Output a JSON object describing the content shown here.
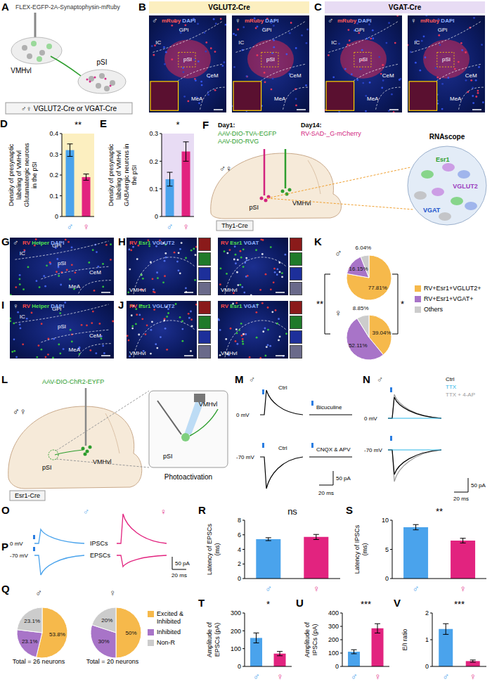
{
  "figure": {
    "A": {
      "letter": "A",
      "virus": "FLEX-EGFP-2A-Synaptophysin-mRuby",
      "source": "VMHvl",
      "target": "pSI",
      "sexes": [
        "♂",
        "♀"
      ],
      "mice": "VGLUT2-Cre or VGAT-Cre"
    },
    "B": {
      "letter": "B",
      "header": "VGLUT2-Cre",
      "color": "#fcefc0",
      "sexes": [
        "♂",
        "♀"
      ],
      "stain": [
        {
          "text": "mRuby",
          "color": "#ff5a5a"
        },
        {
          "text": "DAPI",
          "color": "#8fb0ff"
        }
      ],
      "regions": [
        "GPi",
        "IC",
        "pSI",
        "CeM",
        "MeA"
      ]
    },
    "C": {
      "letter": "C",
      "header": "VGAT-Cre",
      "color": "#e8dcf4",
      "sexes": [
        "♂",
        "♀"
      ],
      "stain": [
        {
          "text": "mRuby",
          "color": "#ff5a5a"
        },
        {
          "text": "DAPI",
          "color": "#8fb0ff"
        }
      ],
      "regions": [
        "GPi",
        "IC",
        "pSI",
        "CeM",
        "MeA"
      ]
    },
    "F": {
      "letter": "F",
      "steps": [
        {
          "day": "Day1:",
          "viruses": [
            "AAV-DIO-TVA-EGFP",
            "AAV-DIO-RVG"
          ]
        },
        {
          "day": "Day14:",
          "viruses": [
            "RV-SAD-_G-mCherry"
          ]
        }
      ],
      "regions": [
        "pSI",
        "VMHvl"
      ],
      "sexes": [
        "♂",
        "♀"
      ],
      "mouse": "Thy1-Cre",
      "method": "RNAscope",
      "markers": [
        {
          "text": "Esr1",
          "color": "#2e9e2e"
        },
        {
          "text": "VGLUT2",
          "color": "#9b3fbf"
        },
        {
          "text": "VGAT",
          "color": "#2255cc"
        }
      ]
    },
    "G": {
      "letter": "G",
      "sex": "♂",
      "stain": [
        {
          "text": "RV",
          "color": "#ff4a4a"
        },
        {
          "text": "Helper",
          "color": "#4fe04f"
        },
        {
          "text": "DAPI",
          "color": "#8fb0ff"
        }
      ],
      "regions": [
        "GPi",
        "IC",
        "pSI",
        "CeM",
        "MeA"
      ]
    },
    "H": {
      "letter": "H",
      "images": [
        {
          "stain": [
            {
              "text": "RV",
              "color": "#ff4a4a"
            },
            {
              "text": "Esr1",
              "color": "#4fe04f"
            },
            {
              "text": "VGLUT2",
              "color": "#8fb0ff"
            }
          ]
        },
        {
          "stain": [
            {
              "text": "RV",
              "color": "#ff4a4a"
            },
            {
              "text": "Esr1",
              "color": "#4fe04f"
            },
            {
              "text": "VGAT",
              "color": "#8fb0ff"
            }
          ]
        }
      ],
      "region": "VMHvl"
    },
    "I": {
      "letter": "I",
      "sex": "♀",
      "stain": [
        {
          "text": "RV",
          "color": "#ff4a4a"
        },
        {
          "text": "Helper",
          "color": "#4fe04f"
        },
        {
          "text": "DAPI",
          "color": "#8fb0ff"
        }
      ],
      "regions": [
        "GPi",
        "IC",
        "pSI",
        "CeM",
        "MeA"
      ]
    },
    "J": {
      "letter": "J",
      "images": [
        {
          "stain": [
            {
              "text": "RV",
              "color": "#ff4a4a"
            },
            {
              "text": "Esr1",
              "color": "#4fe04f"
            },
            {
              "text": "VGLUT2",
              "color": "#8fb0ff"
            }
          ]
        },
        {
          "stain": [
            {
              "text": "RV",
              "color": "#ff4a4a"
            },
            {
              "text": "Esr1",
              "color": "#4fe04f"
            },
            {
              "text": "VGAT",
              "color": "#8fb0ff"
            }
          ]
        }
      ],
      "region": "VMHvl"
    },
    "L": {
      "letter": "L",
      "virus": "AAV-DIO-ChR2-EYFP",
      "regions": [
        "pSI",
        "VMHvl"
      ],
      "sexes": [
        "♂",
        "♀"
      ],
      "mouse": "Esr1-Cre",
      "method": "Photoactivation"
    },
    "M": {
      "letter": "M",
      "sex": "♂",
      "rows": [
        {
          "holding": "0 mV",
          "conditions": [
            "Ctrl",
            "Bicuculine"
          ]
        },
        {
          "holding": "-70 mV",
          "conditions": [
            "Ctrl",
            "CNQX & APV"
          ]
        }
      ],
      "scale": {
        "current": "50 pA",
        "time": "20 ms"
      }
    },
    "N": {
      "letter": "N",
      "sex": "♂",
      "conditions": [
        {
          "text": "Ctrl",
          "color": "#000000"
        },
        {
          "text": "TTX",
          "color": "#29b6e8"
        },
        {
          "text": "TTX + 4-AP",
          "color": "#9a9a9a"
        }
      ],
      "holdings": [
        "0 mV",
        "-70 mV"
      ],
      "scale": {
        "current": "50 pA",
        "time": "20 ms"
      }
    },
    "O_P": {
      "rows": [
        {
          "letter": "O",
          "holding": "0 mV",
          "label": "IPSCs"
        },
        {
          "letter": "P",
          "holding": "-70 mV",
          "label": "EPSCs"
        }
      ],
      "sexes": [
        "♂",
        "♀"
      ],
      "colors": [
        "#4aa3ec",
        "#e2237f"
      ],
      "scale": {
        "current": "50 pA",
        "time": "20 ms"
      }
    }
  },
  "chart_data": [
    {
      "panel": "D",
      "type": "bar",
      "y_label": "Density of presynaptic labeling of VMHvl Glutamatergic neurons in the pSI",
      "categories": [
        "♂",
        "♀"
      ],
      "values": [
        0.32,
        0.19
      ],
      "errors": [
        0.03,
        0.015
      ],
      "colors": [
        "#4aa3ec",
        "#e2237f"
      ],
      "ylim": [
        0,
        0.4
      ],
      "yticks": [
        0,
        0.1,
        0.2,
        0.3,
        0.4
      ],
      "significance": "**"
    },
    {
      "panel": "E",
      "type": "bar",
      "y_label": "Density of presynaptic labeling of VMHvl GABAergic neurons in the pSI",
      "categories": [
        "♂",
        "♀"
      ],
      "values": [
        0.135,
        0.235
      ],
      "errors": [
        0.025,
        0.035
      ],
      "colors": [
        "#4aa3ec",
        "#e2237f"
      ],
      "ylim": [
        0,
        0.3
      ],
      "yticks": [
        0,
        0.1,
        0.2,
        0.3
      ],
      "significance": "*"
    },
    {
      "panel": "K",
      "type": "pie",
      "categories": [
        "RV+Esr1+VGLUT2+",
        "RV+Esr1+VGAT+",
        "Others"
      ],
      "colors": [
        "#f6b94b",
        "#a874c8",
        "#cccccc"
      ],
      "series": [
        {
          "name": "♂",
          "values": [
            77.81,
            16.15,
            6.04
          ],
          "value_labels": [
            "77.81%",
            "16.15%",
            "6.04%"
          ]
        },
        {
          "name": "♀",
          "values": [
            39.04,
            52.11,
            8.85
          ],
          "value_labels": [
            "39.04%",
            "52.11%",
            "8.85%"
          ]
        }
      ],
      "significance": [
        "**",
        "*"
      ],
      "legend": "right"
    },
    {
      "panel": "Q",
      "type": "pie",
      "categories": [
        "Excited & Inhibited",
        "Inhibited",
        "Non-R"
      ],
      "colors": [
        "#f6b94b",
        "#a874c8",
        "#cccccc"
      ],
      "series": [
        {
          "name": "♂",
          "values": [
            53.8,
            23.1,
            23.1
          ],
          "value_labels": [
            "53.8%",
            "23.1%",
            "23.1%"
          ],
          "caption": "Total = 26 neurons"
        },
        {
          "name": "♀",
          "values": [
            50,
            30,
            20
          ],
          "value_labels": [
            "50%",
            "30%",
            "20%"
          ],
          "caption": "Total = 20 neurons"
        }
      ],
      "legend": "right"
    },
    {
      "panel": "R",
      "type": "bar",
      "y_label": "Latency of EPSCs (ms)",
      "categories": [
        "♂",
        "♀"
      ],
      "values": [
        5.4,
        5.7
      ],
      "errors": [
        0.2,
        0.35
      ],
      "colors": [
        "#4aa3ec",
        "#e2237f"
      ],
      "ylim": [
        0,
        8
      ],
      "yticks": [
        0,
        2,
        4,
        6,
        8
      ],
      "significance": "ns"
    },
    {
      "panel": "S",
      "type": "bar",
      "y_label": "Latency of IPSCs (ms)",
      "categories": [
        "♂",
        "♀"
      ],
      "values": [
        8.8,
        6.5
      ],
      "errors": [
        0.45,
        0.4
      ],
      "colors": [
        "#4aa3ec",
        "#e2237f"
      ],
      "ylim": [
        0,
        10
      ],
      "yticks": [
        0,
        5,
        10
      ],
      "significance": "**"
    },
    {
      "panel": "T",
      "type": "bar",
      "y_label": "Amplitude of EPSCs (pA)",
      "categories": [
        "♂",
        "♀"
      ],
      "values": [
        160,
        72
      ],
      "errors": [
        28,
        12
      ],
      "colors": [
        "#4aa3ec",
        "#e2237f"
      ],
      "ylim": [
        0,
        300
      ],
      "yticks": [
        0,
        100,
        200,
        300
      ],
      "significance": "*"
    },
    {
      "panel": "U",
      "type": "bar",
      "y_label": "Amplitude of IPSCs (pA)",
      "categories": [
        "♂",
        "♀"
      ],
      "values": [
        110,
        285
      ],
      "errors": [
        15,
        35
      ],
      "colors": [
        "#4aa3ec",
        "#e2237f"
      ],
      "ylim": [
        0,
        400
      ],
      "yticks": [
        0,
        100,
        200,
        300,
        400
      ],
      "significance": "***"
    },
    {
      "panel": "V",
      "type": "bar",
      "y_label": "E/I ratio",
      "categories": [
        "♂",
        "♀"
      ],
      "values": [
        1.4,
        0.2
      ],
      "errors": [
        0.2,
        0.04
      ],
      "colors": [
        "#4aa3ec",
        "#e2237f"
      ],
      "ylim": [
        0,
        2
      ],
      "yticks": [
        0,
        1,
        2
      ],
      "significance": "***"
    }
  ]
}
